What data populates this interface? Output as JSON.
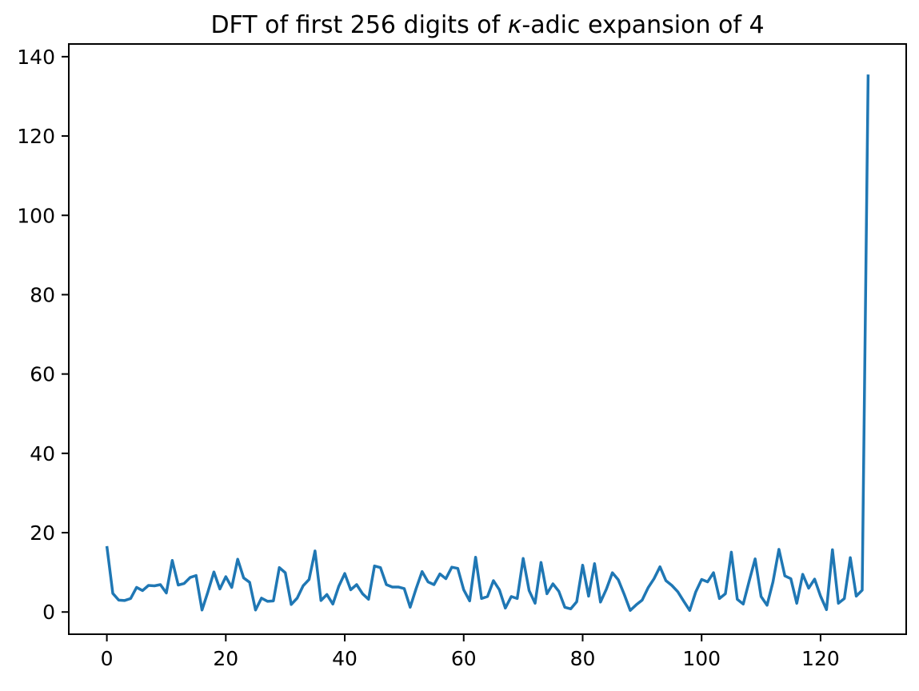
{
  "chart_data": {
    "type": "line",
    "title": "DFT of first 256 digits of κ-adic expansion of 4",
    "title_parts": {
      "prefix": "DFT of first 256 digits of ",
      "kappa": "κ",
      "suffix": "-adic expansion of 4"
    },
    "xlabel": "",
    "ylabel": "",
    "xticks": [
      0,
      20,
      40,
      60,
      80,
      100,
      120
    ],
    "yticks": [
      0,
      20,
      40,
      60,
      80,
      100,
      120,
      140
    ],
    "xlim": [
      -6.4,
      134.4
    ],
    "ylim": [
      -5.6,
      143.2
    ],
    "grid": false,
    "legend": null,
    "line_color": "#1f77b4",
    "axis_color": "#000000",
    "background_color": "#ffffff",
    "x_start": 0,
    "x_step": 1,
    "num_points": 129,
    "values": [
      16.6,
      4.7,
      3.0,
      2.9,
      3.4,
      6.2,
      5.4,
      6.7,
      6.6,
      6.9,
      4.8,
      13.0,
      6.8,
      7.2,
      8.7,
      9.2,
      0.5,
      5.1,
      10.1,
      5.8,
      8.9,
      6.2,
      13.3,
      8.6,
      7.5,
      0.5,
      3.5,
      2.7,
      2.8,
      11.2,
      9.9,
      1.9,
      3.5,
      6.6,
      8.2,
      15.4,
      2.9,
      4.4,
      2.0,
      6.5,
      9.7,
      5.6,
      6.9,
      4.6,
      3.2,
      11.6,
      11.2,
      6.9,
      6.3,
      6.3,
      5.9,
      1.2,
      5.9,
      10.2,
      7.6,
      6.9,
      9.6,
      8.4,
      11.3,
      11.0,
      5.6,
      2.8,
      13.8,
      3.4,
      3.9,
      7.9,
      5.6,
      1.0,
      3.9,
      3.4,
      13.5,
      5.4,
      2.2,
      12.5,
      4.6,
      7.1,
      5.2,
      1.2,
      0.8,
      2.6,
      11.8,
      4.0,
      12.2,
      2.5,
      5.8,
      9.9,
      8.1,
      4.4,
      0.4,
      1.8,
      3.0,
      6.1,
      8.4,
      11.4,
      7.9,
      6.7,
      5.1,
      2.7,
      0.4,
      5.0,
      8.2,
      7.6,
      9.9,
      3.4,
      4.6,
      15.1,
      3.2,
      2.0,
      7.8,
      13.4,
      3.9,
      1.7,
      7.6,
      15.8,
      9.1,
      8.4,
      2.2,
      9.5,
      6.0,
      8.3,
      4.0,
      0.6,
      15.7,
      2.2,
      3.4,
      13.7,
      4.0,
      5.5,
      135.5
    ]
  }
}
